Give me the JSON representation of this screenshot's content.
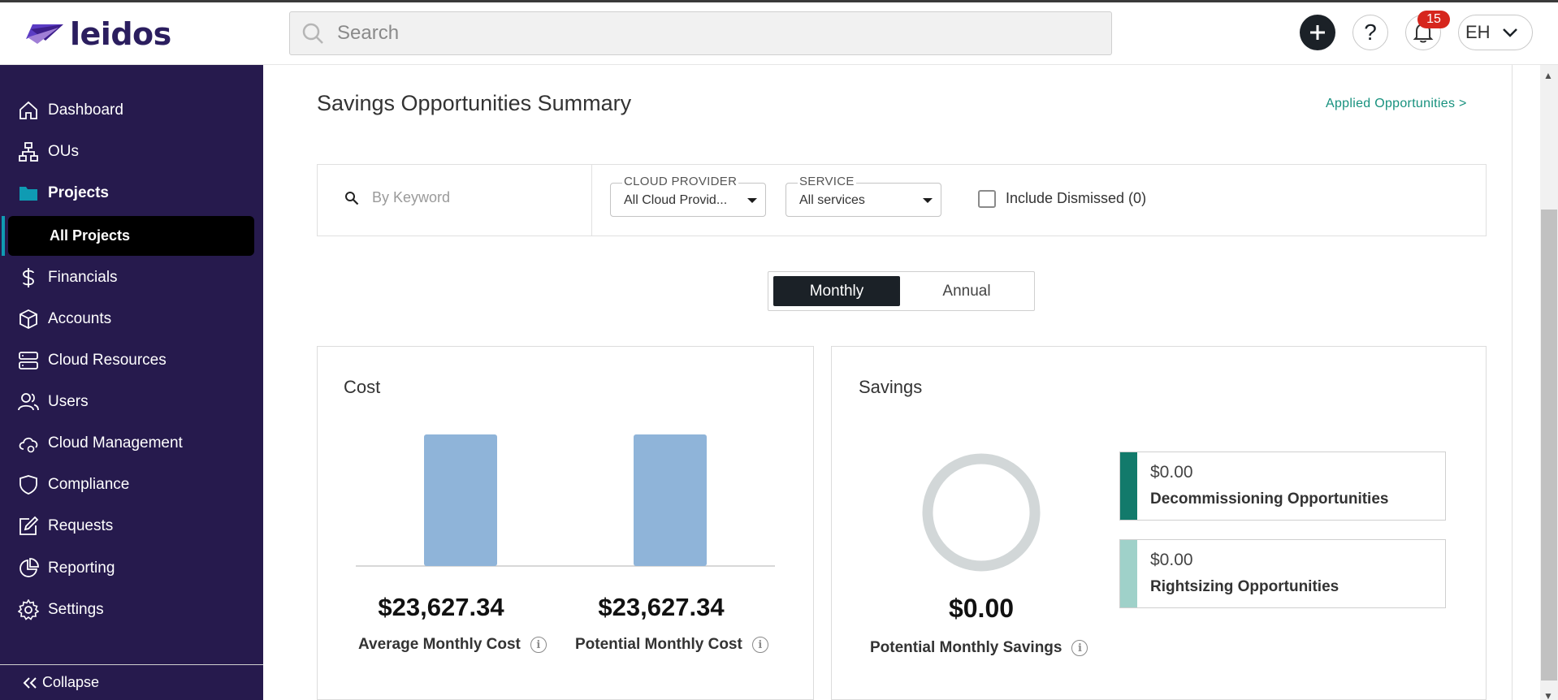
{
  "header": {
    "logo_text": "leidos",
    "search_placeholder": "Search",
    "help_label": "?",
    "notification_count": "15",
    "user_initials": "EH"
  },
  "sidebar": {
    "items": [
      {
        "label": "Dashboard",
        "icon": "home-icon"
      },
      {
        "label": "OUs",
        "icon": "hierarchy-icon"
      },
      {
        "label": "Projects",
        "icon": "folder-icon"
      },
      {
        "label": "Financials",
        "icon": "dollar-icon"
      },
      {
        "label": "Accounts",
        "icon": "cube-icon"
      },
      {
        "label": "Cloud Resources",
        "icon": "server-icon"
      },
      {
        "label": "Users",
        "icon": "users-icon"
      },
      {
        "label": "Cloud Management",
        "icon": "cloud-gear-icon"
      },
      {
        "label": "Compliance",
        "icon": "shield-icon"
      },
      {
        "label": "Requests",
        "icon": "edit-icon"
      },
      {
        "label": "Reporting",
        "icon": "pie-chart-icon"
      },
      {
        "label": "Settings",
        "icon": "gear-icon"
      }
    ],
    "sub_item": "All Projects",
    "collapse_label": "Collapse",
    "accent_color": "#0f9bb3"
  },
  "page": {
    "title": "Savings Opportunities Summary",
    "applied_link": "Applied Opportunities >"
  },
  "filters": {
    "keyword_placeholder": "By Keyword",
    "cloud_provider_label": "CLOUD PROVIDER",
    "cloud_provider_value": "All Cloud Provid...",
    "service_label": "SERVICE",
    "service_value": "All services",
    "include_dismissed": "Include Dismissed (0)"
  },
  "period_toggle": {
    "monthly": "Monthly",
    "annual": "Annual",
    "selected": "Monthly"
  },
  "cost_card": {
    "title": "Cost",
    "average_value": "$23,627.34",
    "average_label": "Average Monthly Cost",
    "potential_value": "$23,627.34",
    "potential_label": "Potential Monthly Cost"
  },
  "savings_card": {
    "title": "Savings",
    "potential_value": "$0.00",
    "potential_label": "Potential Monthly Savings",
    "opportunities": [
      {
        "amount": "$0.00",
        "name": "Decommissioning Opportunities",
        "color": "#127a6b"
      },
      {
        "amount": "$0.00",
        "name": "Rightsizing Opportunities",
        "color": "#9fd1c9"
      }
    ]
  },
  "chart_data": {
    "type": "bar",
    "categories": [
      "Average Monthly Cost",
      "Potential Monthly Cost"
    ],
    "values": [
      23627.34,
      23627.34
    ],
    "title": "Cost"
  }
}
